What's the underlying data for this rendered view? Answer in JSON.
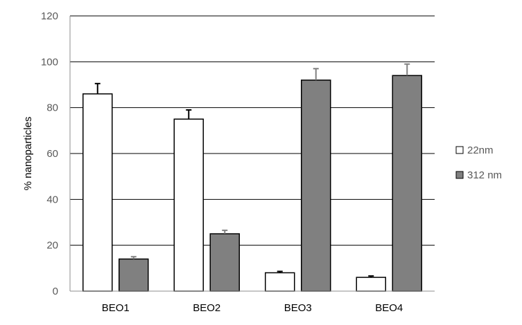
{
  "chart_data": {
    "type": "bar",
    "title": "",
    "xlabel": "",
    "ylabel": "% nanoparticles",
    "ylim": [
      0,
      120
    ],
    "yticks": [
      "0",
      "20",
      "40",
      "60",
      "80",
      "100",
      "120"
    ],
    "grid": true,
    "legend_position": "right",
    "categories": [
      "BEO1",
      "BEO2",
      "BEO3",
      "BEO4"
    ],
    "series": [
      {
        "name": "22nm",
        "color": "#ffffff",
        "error_color": "#000000",
        "values": [
          86,
          75,
          8,
          6
        ],
        "errors": [
          4.5,
          4,
          0.6,
          0.6
        ]
      },
      {
        "name": "312 nm",
        "color": "#808080",
        "error_color": "#808080",
        "values": [
          14,
          25,
          92,
          94
        ],
        "errors": [
          1,
          1.5,
          5,
          5
        ]
      }
    ]
  }
}
